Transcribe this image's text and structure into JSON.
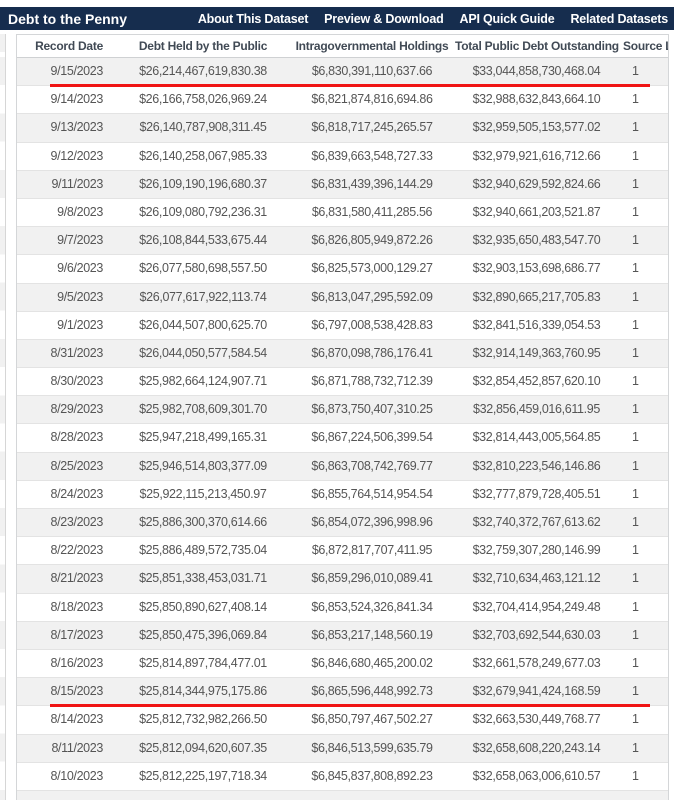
{
  "header": {
    "title": "Debt to the Penny",
    "nav": [
      "About This Dataset",
      "Preview & Download",
      "API Quick Guide",
      "Related Datasets"
    ]
  },
  "table": {
    "columns": [
      "Record Date",
      "Debt Held by the Public",
      "Intragovernmental Holdings",
      "Total Public Debt Outstanding",
      "Source Line Number"
    ],
    "rows": [
      {
        "record_date": "9/15/2023",
        "debt_held_by_public": "$26,214,467,619,830.38",
        "intragovernmental": "$6,830,391,110,637.66",
        "total_outstanding": "$33,044,858,730,468.04",
        "source": "1",
        "underlined": true
      },
      {
        "record_date": "9/14/2023",
        "debt_held_by_public": "$26,166,758,026,969.24",
        "intragovernmental": "$6,821,874,816,694.86",
        "total_outstanding": "$32,988,632,843,664.10",
        "source": "1",
        "underlined": false
      },
      {
        "record_date": "9/13/2023",
        "debt_held_by_public": "$26,140,787,908,311.45",
        "intragovernmental": "$6,818,717,245,265.57",
        "total_outstanding": "$32,959,505,153,577.02",
        "source": "1",
        "underlined": false
      },
      {
        "record_date": "9/12/2023",
        "debt_held_by_public": "$26,140,258,067,985.33",
        "intragovernmental": "$6,839,663,548,727.33",
        "total_outstanding": "$32,979,921,616,712.66",
        "source": "1",
        "underlined": false
      },
      {
        "record_date": "9/11/2023",
        "debt_held_by_public": "$26,109,190,196,680.37",
        "intragovernmental": "$6,831,439,396,144.29",
        "total_outstanding": "$32,940,629,592,824.66",
        "source": "1",
        "underlined": false
      },
      {
        "record_date": "9/8/2023",
        "debt_held_by_public": "$26,109,080,792,236.31",
        "intragovernmental": "$6,831,580,411,285.56",
        "total_outstanding": "$32,940,661,203,521.87",
        "source": "1",
        "underlined": false
      },
      {
        "record_date": "9/7/2023",
        "debt_held_by_public": "$26,108,844,533,675.44",
        "intragovernmental": "$6,826,805,949,872.26",
        "total_outstanding": "$32,935,650,483,547.70",
        "source": "1",
        "underlined": false
      },
      {
        "record_date": "9/6/2023",
        "debt_held_by_public": "$26,077,580,698,557.50",
        "intragovernmental": "$6,825,573,000,129.27",
        "total_outstanding": "$32,903,153,698,686.77",
        "source": "1",
        "underlined": false
      },
      {
        "record_date": "9/5/2023",
        "debt_held_by_public": "$26,077,617,922,113.74",
        "intragovernmental": "$6,813,047,295,592.09",
        "total_outstanding": "$32,890,665,217,705.83",
        "source": "1",
        "underlined": false
      },
      {
        "record_date": "9/1/2023",
        "debt_held_by_public": "$26,044,507,800,625.70",
        "intragovernmental": "$6,797,008,538,428.83",
        "total_outstanding": "$32,841,516,339,054.53",
        "source": "1",
        "underlined": false
      },
      {
        "record_date": "8/31/2023",
        "debt_held_by_public": "$26,044,050,577,584.54",
        "intragovernmental": "$6,870,098,786,176.41",
        "total_outstanding": "$32,914,149,363,760.95",
        "source": "1",
        "underlined": false
      },
      {
        "record_date": "8/30/2023",
        "debt_held_by_public": "$25,982,664,124,907.71",
        "intragovernmental": "$6,871,788,732,712.39",
        "total_outstanding": "$32,854,452,857,620.10",
        "source": "1",
        "underlined": false
      },
      {
        "record_date": "8/29/2023",
        "debt_held_by_public": "$25,982,708,609,301.70",
        "intragovernmental": "$6,873,750,407,310.25",
        "total_outstanding": "$32,856,459,016,611.95",
        "source": "1",
        "underlined": false
      },
      {
        "record_date": "8/28/2023",
        "debt_held_by_public": "$25,947,218,499,165.31",
        "intragovernmental": "$6,867,224,506,399.54",
        "total_outstanding": "$32,814,443,005,564.85",
        "source": "1",
        "underlined": false
      },
      {
        "record_date": "8/25/2023",
        "debt_held_by_public": "$25,946,514,803,377.09",
        "intragovernmental": "$6,863,708,742,769.77",
        "total_outstanding": "$32,810,223,546,146.86",
        "source": "1",
        "underlined": false
      },
      {
        "record_date": "8/24/2023",
        "debt_held_by_public": "$25,922,115,213,450.97",
        "intragovernmental": "$6,855,764,514,954.54",
        "total_outstanding": "$32,777,879,728,405.51",
        "source": "1",
        "underlined": false
      },
      {
        "record_date": "8/23/2023",
        "debt_held_by_public": "$25,886,300,370,614.66",
        "intragovernmental": "$6,854,072,396,998.96",
        "total_outstanding": "$32,740,372,767,613.62",
        "source": "1",
        "underlined": false
      },
      {
        "record_date": "8/22/2023",
        "debt_held_by_public": "$25,886,489,572,735.04",
        "intragovernmental": "$6,872,817,707,411.95",
        "total_outstanding": "$32,759,307,280,146.99",
        "source": "1",
        "underlined": false
      },
      {
        "record_date": "8/21/2023",
        "debt_held_by_public": "$25,851,338,453,031.71",
        "intragovernmental": "$6,859,296,010,089.41",
        "total_outstanding": "$32,710,634,463,121.12",
        "source": "1",
        "underlined": false
      },
      {
        "record_date": "8/18/2023",
        "debt_held_by_public": "$25,850,890,627,408.14",
        "intragovernmental": "$6,853,524,326,841.34",
        "total_outstanding": "$32,704,414,954,249.48",
        "source": "1",
        "underlined": false
      },
      {
        "record_date": "8/17/2023",
        "debt_held_by_public": "$25,850,475,396,069.84",
        "intragovernmental": "$6,853,217,148,560.19",
        "total_outstanding": "$32,703,692,544,630.03",
        "source": "1",
        "underlined": false
      },
      {
        "record_date": "8/16/2023",
        "debt_held_by_public": "$25,814,897,784,477.01",
        "intragovernmental": "$6,846,680,465,200.02",
        "total_outstanding": "$32,661,578,249,677.03",
        "source": "1",
        "underlined": false
      },
      {
        "record_date": "8/15/2023",
        "debt_held_by_public": "$25,814,344,975,175.86",
        "intragovernmental": "$6,865,596,448,992.73",
        "total_outstanding": "$32,679,941,424,168.59",
        "source": "1",
        "underlined": true
      },
      {
        "record_date": "8/14/2023",
        "debt_held_by_public": "$25,812,732,982,266.50",
        "intragovernmental": "$6,850,797,467,502.27",
        "total_outstanding": "$32,663,530,449,768.77",
        "source": "1",
        "underlined": false
      },
      {
        "record_date": "8/11/2023",
        "debt_held_by_public": "$25,812,094,620,607.35",
        "intragovernmental": "$6,846,513,599,635.79",
        "total_outstanding": "$32,658,608,220,243.14",
        "source": "1",
        "underlined": false
      },
      {
        "record_date": "8/10/2023",
        "debt_held_by_public": "$25,812,225,197,718.34",
        "intragovernmental": "$6,845,837,808,892.23",
        "total_outstanding": "$32,658,063,006,610.57",
        "source": "1",
        "underlined": false
      }
    ]
  },
  "colors": {
    "navy": "#162d4e",
    "red": "#f01414",
    "stripe": "#f1f1f1",
    "border": "#d4d6d8",
    "row_border": "#e3e3e3",
    "th_text": "#414a55",
    "td_text": "#555555"
  }
}
